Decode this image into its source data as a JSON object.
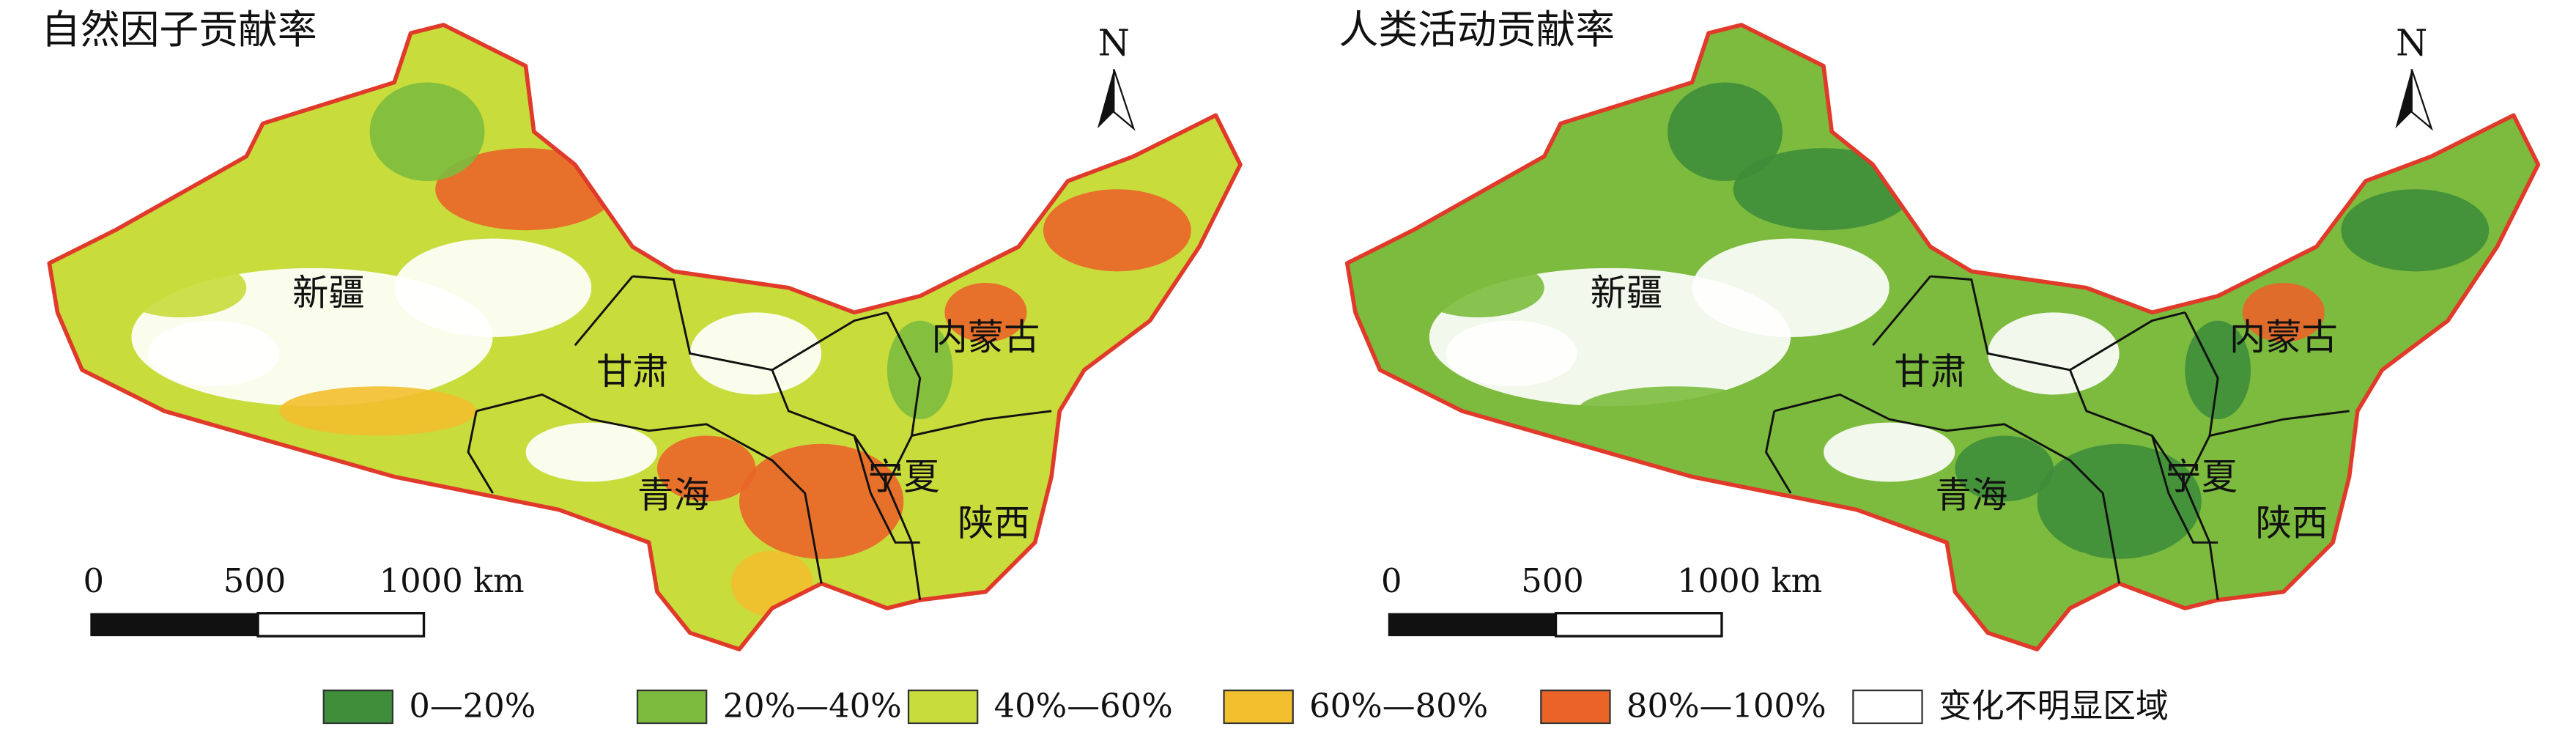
{
  "panels": [
    {
      "title": "自然因子贡献率",
      "north": "N",
      "regions": [
        "新疆",
        "甘肃",
        "青海",
        "宁夏",
        "内蒙古",
        "陕西"
      ],
      "scale_labels": [
        "0",
        "500",
        "1000 km"
      ]
    },
    {
      "title": "人类活动贡献率",
      "north": "N",
      "regions": [
        "新疆",
        "甘肃",
        "青海",
        "宁夏",
        "内蒙古",
        "陕西"
      ],
      "scale_labels": [
        "0",
        "500",
        "1000 km"
      ]
    }
  ],
  "legend": [
    {
      "label": "0—20%",
      "color": "#3e8e3a"
    },
    {
      "label": "20%—40%",
      "color": "#7cbb3e"
    },
    {
      "label": "40%—60%",
      "color": "#c8dc3c"
    },
    {
      "label": "60%—80%",
      "color": "#f2bf2e"
    },
    {
      "label": "80%—100%",
      "color": "#ea6428"
    },
    {
      "label": "变化不明显区域",
      "color": "#ffffff"
    }
  ]
}
